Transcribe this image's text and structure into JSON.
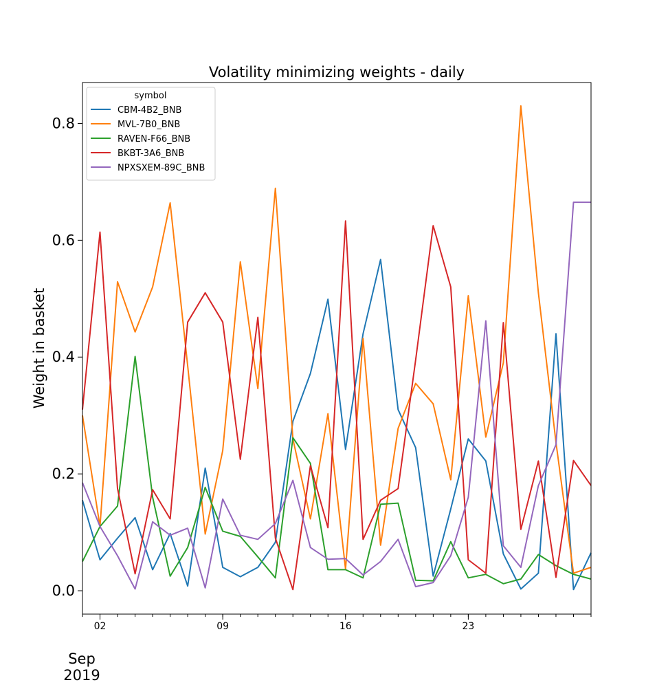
{
  "chart_data": {
    "type": "line",
    "title": "Volatility minimizing weights - daily",
    "xlabel": "",
    "ylabel": "Weight in basket",
    "x_days": [
      1,
      2,
      3,
      4,
      5,
      6,
      7,
      8,
      9,
      10,
      11,
      12,
      13,
      14,
      15,
      16,
      17,
      18,
      19,
      20,
      21,
      22,
      23,
      24,
      25,
      26,
      27,
      28,
      29,
      30
    ],
    "xlim_days": [
      1,
      30
    ],
    "ylim": [
      -0.04,
      0.87
    ],
    "yticks": [
      0.0,
      0.2,
      0.4,
      0.6,
      0.8
    ],
    "ytick_labels": [
      "0.0",
      "0.2",
      "0.4",
      "0.6",
      "0.8"
    ],
    "xticks_major_days": [
      2,
      9,
      16,
      23
    ],
    "xtick_major_labels": [
      "02",
      "09",
      "16",
      "23"
    ],
    "xtick_minor_days": [
      1,
      2,
      3,
      4,
      5,
      6,
      7,
      8,
      9,
      10,
      11,
      12,
      13,
      14,
      15,
      16,
      17,
      18,
      19,
      20,
      21,
      22,
      23,
      24,
      25,
      26,
      27,
      28,
      29,
      30
    ],
    "x_month_label": "Sep",
    "x_year_label": "2019",
    "legend": {
      "title": "symbol",
      "position": "upper-left"
    },
    "series": [
      {
        "name": "CBM-4B2_BNB",
        "color": "#1f77b4",
        "values": [
          0.155,
          0.053,
          0.09,
          0.125,
          0.036,
          0.098,
          0.008,
          0.21,
          0.04,
          0.024,
          0.04,
          0.083,
          0.29,
          0.372,
          0.499,
          0.242,
          0.44,
          0.567,
          0.31,
          0.245,
          0.025,
          0.14,
          0.26,
          0.222,
          0.063,
          0.003,
          0.03,
          0.44,
          0.002,
          0.065
        ]
      },
      {
        "name": "MVL-7B0_BNB",
        "color": "#ff7f0e",
        "values": [
          0.3,
          0.11,
          0.529,
          0.443,
          0.52,
          0.664,
          0.385,
          0.097,
          0.24,
          0.563,
          0.346,
          0.689,
          0.26,
          0.123,
          0.303,
          0.037,
          0.432,
          0.078,
          0.278,
          0.355,
          0.32,
          0.19,
          0.505,
          0.263,
          0.39,
          0.83,
          0.51,
          0.254,
          0.03,
          0.04
        ]
      },
      {
        "name": "RAVEN-F66_BNB",
        "color": "#2ca02c",
        "values": [
          0.05,
          0.11,
          0.145,
          0.401,
          0.16,
          0.025,
          0.074,
          0.177,
          0.102,
          0.093,
          0.058,
          0.022,
          0.262,
          0.218,
          0.036,
          0.036,
          0.022,
          0.148,
          0.15,
          0.018,
          0.017,
          0.084,
          0.022,
          0.028,
          0.012,
          0.02,
          0.062,
          0.043,
          0.028,
          0.02
        ]
      },
      {
        "name": "BKBT-3A6_BNB",
        "color": "#d62728",
        "values": [
          0.31,
          0.614,
          0.175,
          0.029,
          0.173,
          0.123,
          0.46,
          0.51,
          0.46,
          0.225,
          0.468,
          0.09,
          0.002,
          0.214,
          0.108,
          0.633,
          0.088,
          0.155,
          0.175,
          0.395,
          0.625,
          0.52,
          0.053,
          0.03,
          0.459,
          0.105,
          0.222,
          0.023,
          0.223,
          0.18
        ]
      },
      {
        "name": "NPXSXEM-89C_BNB",
        "color": "#9467bd",
        "values": [
          0.185,
          0.11,
          0.06,
          0.003,
          0.118,
          0.095,
          0.107,
          0.005,
          0.157,
          0.095,
          0.088,
          0.115,
          0.189,
          0.074,
          0.054,
          0.055,
          0.027,
          0.05,
          0.088,
          0.007,
          0.014,
          0.06,
          0.16,
          0.462,
          0.077,
          0.04,
          0.18,
          0.25,
          0.665,
          0.665
        ]
      }
    ]
  }
}
